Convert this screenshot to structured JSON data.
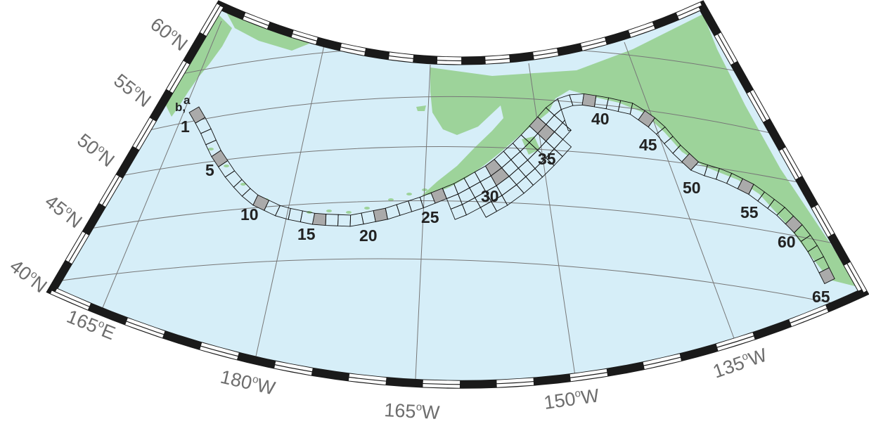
{
  "map": {
    "colors": {
      "ocean": "#d6eef8",
      "land": "#9dd39a",
      "graticule": "#777777",
      "frame_dark": "#1a1a1a",
      "frame_light": "#ffffff",
      "subfault_fill": "#aaaaaa",
      "subfault_stroke": "#111111"
    },
    "latitude_labels": {
      "lat60": {
        "deg": "60",
        "hemi": "N"
      },
      "lat55": {
        "deg": "55",
        "hemi": "N"
      },
      "lat50": {
        "deg": "50",
        "hemi": "N"
      },
      "lat45": {
        "deg": "45",
        "hemi": "N"
      },
      "lat40": {
        "deg": "40",
        "hemi": "N"
      }
    },
    "longitude_labels": {
      "lon165e": {
        "deg": "165",
        "hemi": "E"
      },
      "lon180w": {
        "deg": "180",
        "hemi": "W"
      },
      "lon165w": {
        "deg": "165",
        "hemi": "W"
      },
      "lon150w": {
        "deg": "150",
        "hemi": "W"
      },
      "lon135w": {
        "deg": "135",
        "hemi": "W"
      }
    },
    "degree_symbol": "o",
    "row_labels": {
      "a": "a",
      "b": "b",
      "sep": ","
    },
    "subfault_numbers": {
      "n1": "1",
      "n5": "5",
      "n10": "10",
      "n15": "15",
      "n20": "20",
      "n25": "25",
      "n30": "30",
      "n35": "35",
      "n40": "40",
      "n45": "45",
      "n50": "50",
      "n55": "55",
      "n60": "60",
      "n65": "65"
    }
  }
}
